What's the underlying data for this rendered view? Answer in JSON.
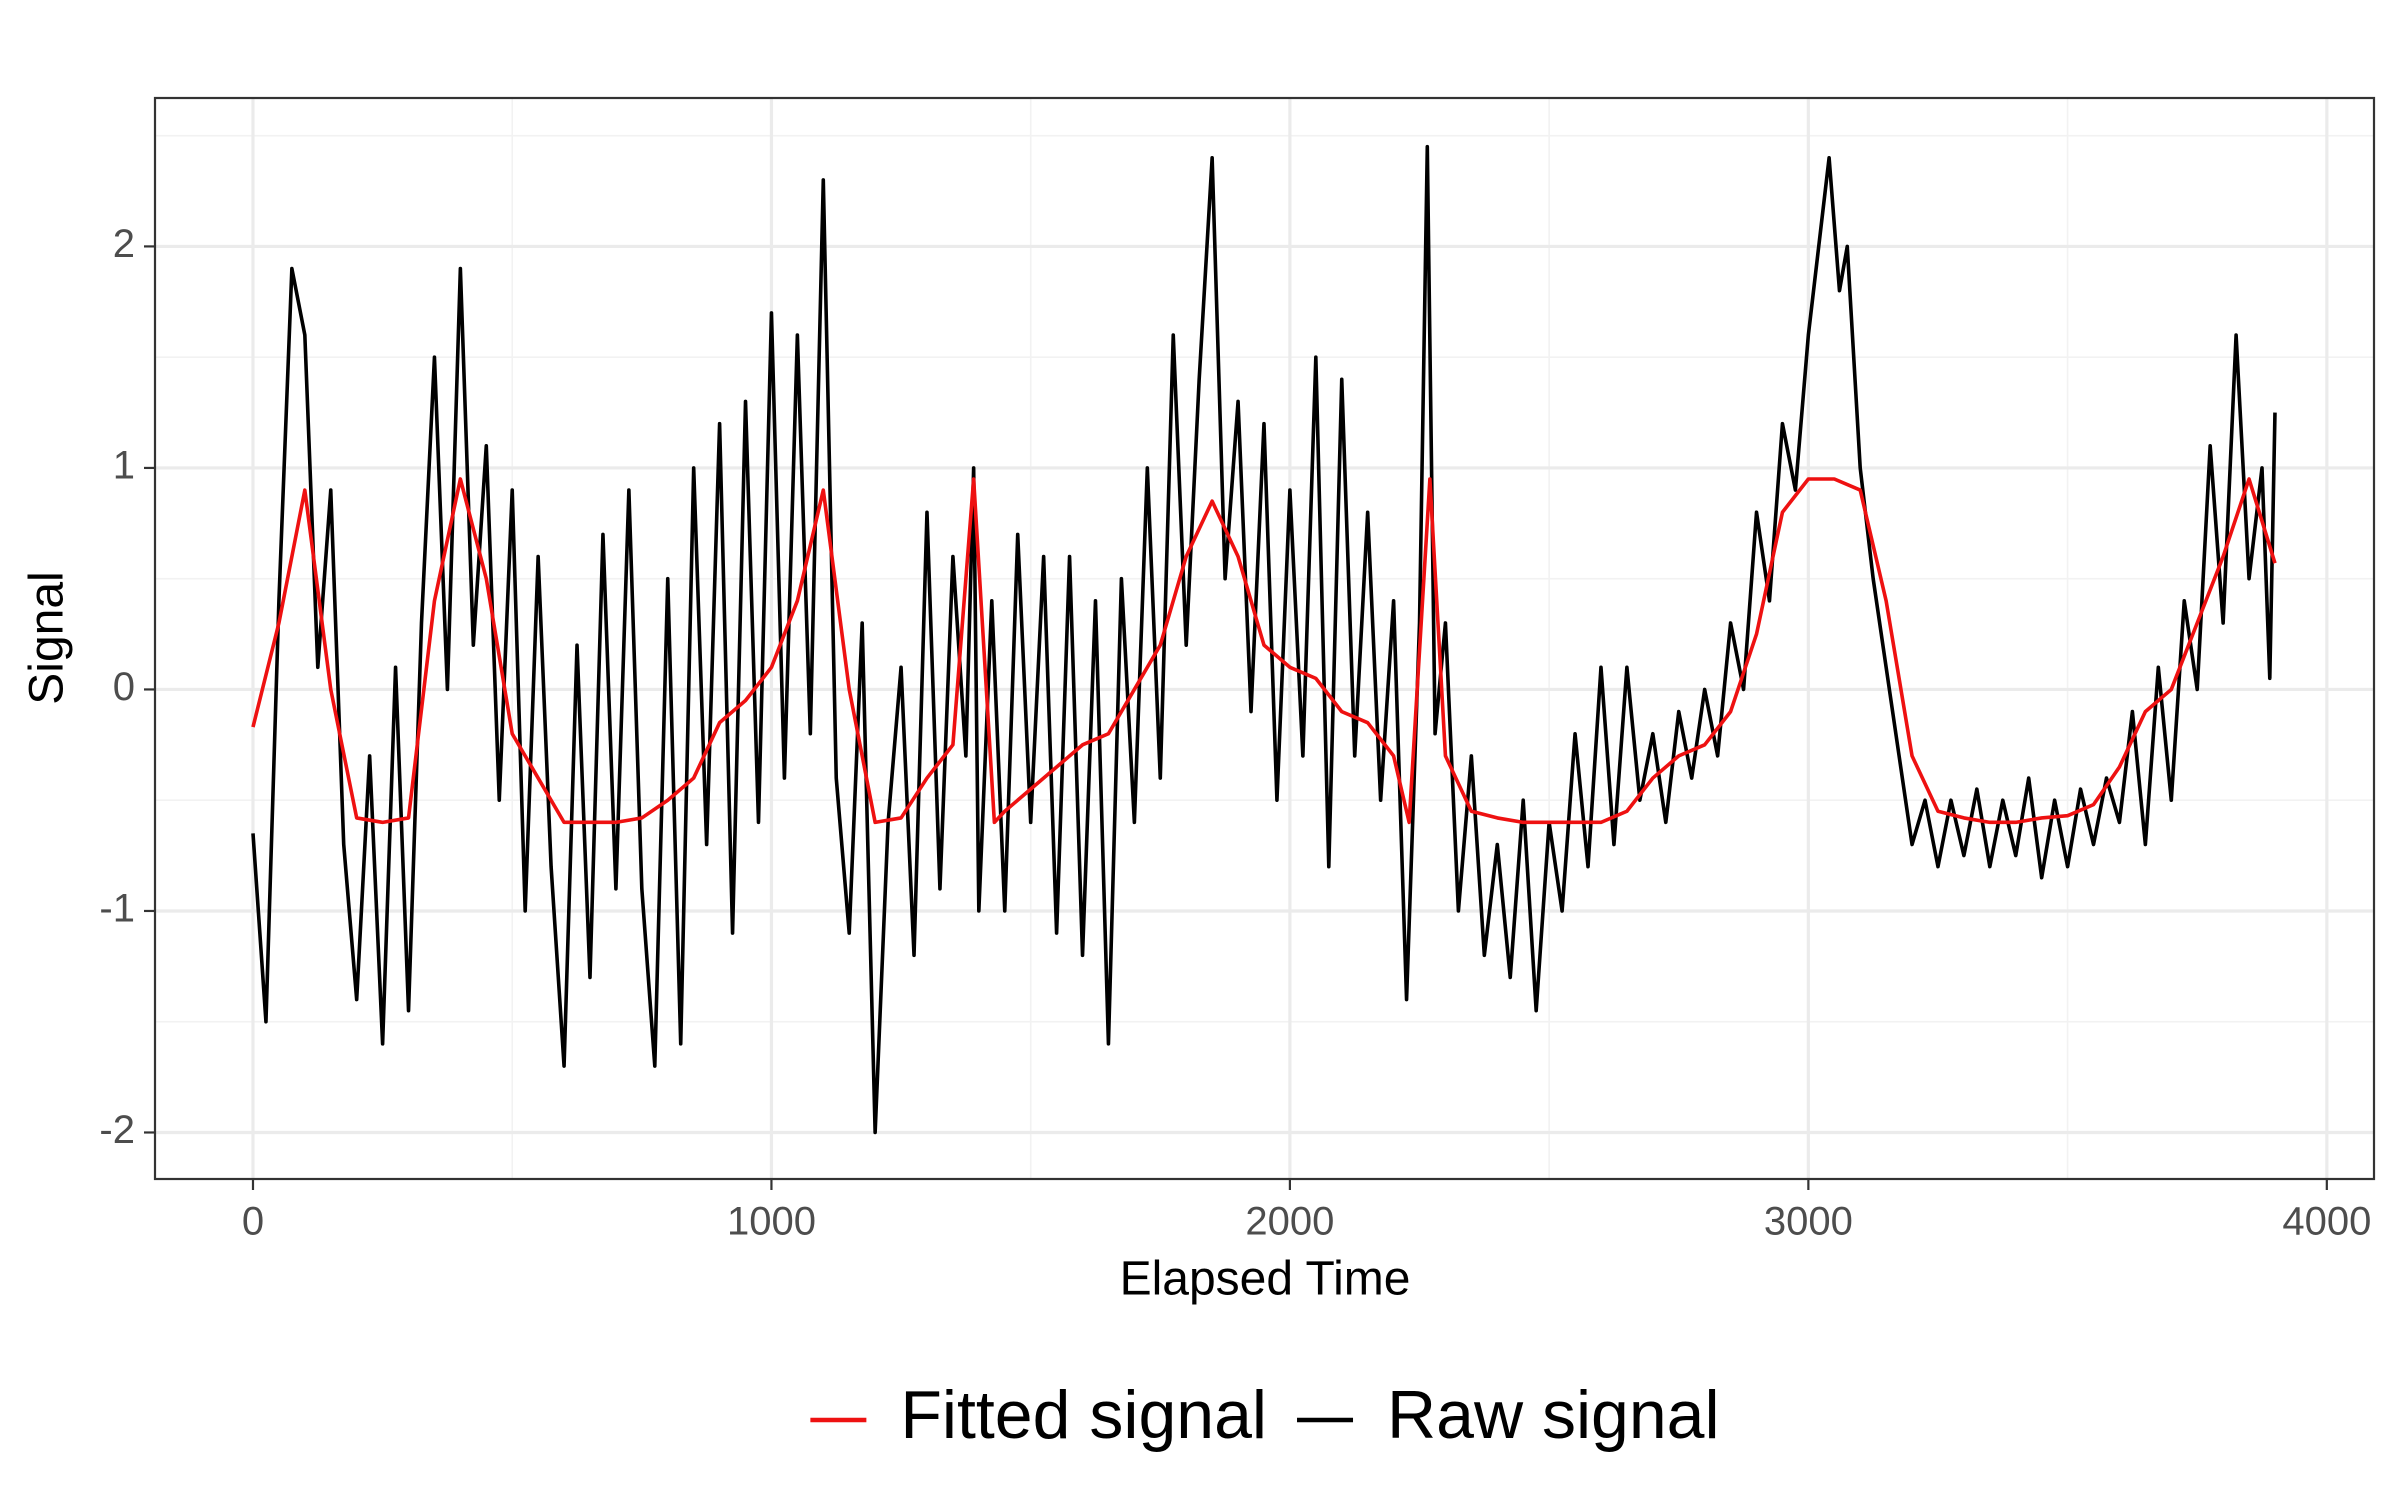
{
  "chart_data": {
    "type": "line",
    "x_label": "Elapsed Time",
    "y_label": "Signal",
    "xlim": [
      -189,
      4091
    ],
    "ylim": [
      -2.21,
      2.67
    ],
    "xticks": [
      0,
      1000,
      2000,
      3000,
      4000
    ],
    "yticks": [
      -2,
      -1,
      0,
      1,
      2
    ],
    "x_minor_grid": [
      500,
      1500,
      2500,
      3500
    ],
    "y_minor_grid": [
      -1.5,
      -0.5,
      0.5,
      1.5,
      2.5
    ],
    "grid": true,
    "legend_position": "bottom",
    "series": [
      {
        "name": "Fitted signal",
        "color": "#ee1111",
        "x": [
          0,
          50,
          100,
          150,
          200,
          250,
          300,
          350,
          400,
          450,
          500,
          550,
          600,
          650,
          700,
          750,
          800,
          850,
          900,
          950,
          1000,
          1050,
          1100,
          1150,
          1200,
          1250,
          1300,
          1350,
          1390,
          1430,
          1450,
          1500,
          1550,
          1600,
          1650,
          1700,
          1750,
          1800,
          1850,
          1900,
          1950,
          2000,
          2050,
          2100,
          2150,
          2200,
          2230,
          2270,
          2300,
          2350,
          2400,
          2450,
          2500,
          2550,
          2600,
          2650,
          2700,
          2750,
          2800,
          2850,
          2900,
          2950,
          3000,
          3050,
          3100,
          3150,
          3200,
          3250,
          3300,
          3350,
          3400,
          3450,
          3500,
          3550,
          3600,
          3650,
          3700,
          3750,
          3800,
          3850,
          3900
        ],
        "values": [
          -0.17,
          0.3,
          0.9,
          0.0,
          -0.58,
          -0.6,
          -0.58,
          0.4,
          0.95,
          0.5,
          -0.2,
          -0.4,
          -0.6,
          -0.6,
          -0.6,
          -0.58,
          -0.5,
          -0.4,
          -0.15,
          -0.05,
          0.1,
          0.4,
          0.9,
          0.0,
          -0.6,
          -0.58,
          -0.4,
          -0.25,
          0.95,
          -0.6,
          -0.55,
          -0.45,
          -0.35,
          -0.25,
          -0.2,
          0.0,
          0.2,
          0.6,
          0.85,
          0.6,
          0.2,
          0.1,
          0.05,
          -0.1,
          -0.15,
          -0.3,
          -0.6,
          0.95,
          -0.3,
          -0.55,
          -0.58,
          -0.6,
          -0.6,
          -0.6,
          -0.6,
          -0.55,
          -0.4,
          -0.3,
          -0.25,
          -0.1,
          0.25,
          0.8,
          0.95,
          0.95,
          0.9,
          0.4,
          -0.3,
          -0.55,
          -0.58,
          -0.6,
          -0.6,
          -0.58,
          -0.57,
          -0.52,
          -0.35,
          -0.1,
          0.0,
          0.3,
          0.6,
          0.95,
          0.57
        ]
      },
      {
        "name": "Raw signal",
        "color": "#000000",
        "x": [
          0,
          25,
          50,
          75,
          100,
          125,
          150,
          175,
          200,
          225,
          250,
          275,
          300,
          325,
          350,
          375,
          400,
          425,
          450,
          475,
          500,
          525,
          550,
          575,
          600,
          625,
          650,
          675,
          700,
          725,
          750,
          775,
          800,
          825,
          850,
          875,
          900,
          925,
          950,
          975,
          1000,
          1025,
          1050,
          1075,
          1100,
          1125,
          1150,
          1175,
          1200,
          1225,
          1250,
          1275,
          1300,
          1325,
          1350,
          1375,
          1390,
          1400,
          1425,
          1450,
          1475,
          1500,
          1525,
          1550,
          1575,
          1600,
          1625,
          1650,
          1675,
          1700,
          1725,
          1750,
          1775,
          1800,
          1825,
          1850,
          1875,
          1900,
          1925,
          1950,
          1975,
          2000,
          2025,
          2050,
          2075,
          2100,
          2125,
          2150,
          2175,
          2200,
          2225,
          2250,
          2265,
          2280,
          2300,
          2325,
          2350,
          2375,
          2400,
          2425,
          2450,
          2475,
          2500,
          2525,
          2550,
          2575,
          2600,
          2625,
          2650,
          2675,
          2700,
          2725,
          2750,
          2775,
          2800,
          2825,
          2850,
          2875,
          2900,
          2925,
          2950,
          2975,
          3000,
          3025,
          3040,
          3060,
          3075,
          3100,
          3125,
          3150,
          3175,
          3200,
          3225,
          3250,
          3275,
          3300,
          3325,
          3350,
          3375,
          3400,
          3425,
          3450,
          3475,
          3500,
          3525,
          3550,
          3575,
          3600,
          3625,
          3650,
          3675,
          3700,
          3725,
          3750,
          3775,
          3800,
          3825,
          3850,
          3875,
          3890,
          3900
        ],
        "values": [
          -0.65,
          -1.5,
          0.4,
          1.9,
          1.6,
          0.1,
          0.9,
          -0.7,
          -1.4,
          -0.3,
          -1.6,
          0.1,
          -1.45,
          0.3,
          1.5,
          0.0,
          1.9,
          0.2,
          1.1,
          -0.5,
          0.9,
          -1.0,
          0.6,
          -0.8,
          -1.7,
          0.2,
          -1.3,
          0.7,
          -0.9,
          0.9,
          -0.9,
          -1.7,
          0.5,
          -1.6,
          1.0,
          -0.7,
          1.2,
          -1.1,
          1.3,
          -0.6,
          1.7,
          -0.4,
          1.6,
          -0.2,
          2.3,
          -0.4,
          -1.1,
          0.3,
          -2.0,
          -0.6,
          0.1,
          -1.2,
          0.8,
          -0.9,
          0.6,
          -0.3,
          1.0,
          -1.0,
          0.4,
          -1.0,
          0.7,
          -0.6,
          0.6,
          -1.1,
          0.6,
          -1.2,
          0.4,
          -1.6,
          0.5,
          -0.6,
          1.0,
          -0.4,
          1.6,
          0.2,
          1.4,
          2.4,
          0.5,
          1.3,
          -0.1,
          1.2,
          -0.5,
          0.9,
          -0.3,
          1.5,
          -0.8,
          1.4,
          -0.3,
          0.8,
          -0.5,
          0.4,
          -1.4,
          0.3,
          2.45,
          -0.2,
          0.3,
          -1.0,
          -0.3,
          -1.2,
          -0.7,
          -1.3,
          -0.5,
          -1.45,
          -0.6,
          -1.0,
          -0.2,
          -0.8,
          0.1,
          -0.7,
          0.1,
          -0.5,
          -0.2,
          -0.6,
          -0.1,
          -0.4,
          0.0,
          -0.3,
          0.3,
          0.0,
          0.8,
          0.4,
          1.2,
          0.9,
          1.6,
          2.1,
          2.4,
          1.8,
          2.0,
          1.0,
          0.5,
          0.1,
          -0.3,
          -0.7,
          -0.5,
          -0.8,
          -0.5,
          -0.75,
          -0.45,
          -0.8,
          -0.5,
          -0.75,
          -0.4,
          -0.85,
          -0.5,
          -0.8,
          -0.45,
          -0.7,
          -0.4,
          -0.6,
          -0.1,
          -0.7,
          0.1,
          -0.5,
          0.4,
          0.0,
          1.1,
          0.3,
          1.6,
          0.5,
          1.0,
          0.05,
          1.25
        ]
      }
    ]
  }
}
